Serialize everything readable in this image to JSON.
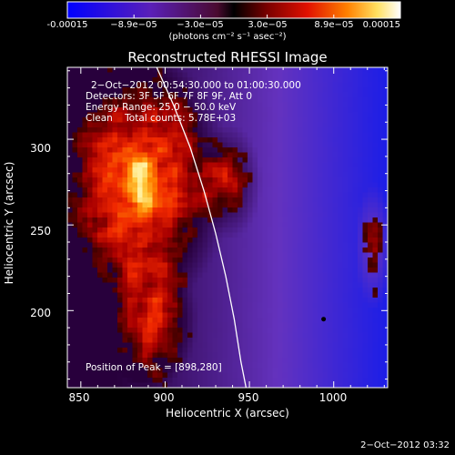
{
  "colorbar": {
    "ticks": [
      "-0.00015",
      "−8.9e−05",
      "−3.0e−05",
      "3.0e−05",
      "8.9e−05",
      "0.00015"
    ],
    "units": "(photons cm⁻² s⁻¹ asec⁻²)"
  },
  "header": {
    "title": "Reconstructed RHESSI Image"
  },
  "annotations": {
    "time": "2−Oct−2012 00:54:30.000 to 01:00:30.000",
    "detectors": "Detectors: 3F 5F 6F 7F 8F 9F, Att 0",
    "energy": "Energy Range: 25.0 − 50.0 keV",
    "clean": "Clean    Total counts: 5.78E+03",
    "peak": "Position of Peak = [898,280]"
  },
  "footer": {
    "timestamp": "2−Oct−2012 03:32"
  },
  "chart_data": {
    "type": "heatmap",
    "title": "Reconstructed RHESSI Image",
    "xlabel": "Heliocentric X (arcsec)",
    "ylabel": "Heliocentric Y (arcsec)",
    "xlim": [
      842,
      1032
    ],
    "ylim": [
      155,
      342
    ],
    "xticks": [
      850,
      900,
      950,
      1000
    ],
    "yticks": [
      200,
      250,
      300
    ],
    "colorbar_range": [
      -0.00015,
      0.00015
    ],
    "peak_position": [
      898,
      280
    ],
    "limb_curve": [
      [
        895,
        342
      ],
      [
        905,
        320
      ],
      [
        915,
        295
      ],
      [
        923,
        270
      ],
      [
        930,
        245
      ],
      [
        936,
        220
      ],
      [
        941,
        195
      ],
      [
        945,
        170
      ],
      [
        948,
        155
      ]
    ]
  }
}
